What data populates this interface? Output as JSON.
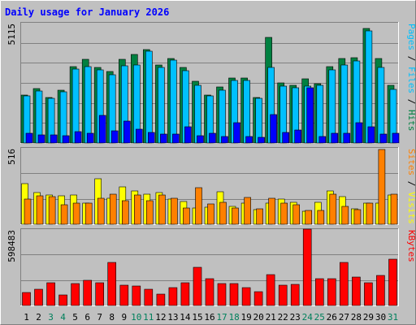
{
  "chart_data": [
    {
      "type": "bar",
      "panel": "top",
      "title": "Daily usage for January 2026",
      "categories": [
        "1",
        "2",
        "3",
        "4",
        "5",
        "6",
        "7",
        "8",
        "9",
        "10",
        "11",
        "12",
        "13",
        "14",
        "15",
        "16",
        "17",
        "18",
        "19",
        "20",
        "21",
        "22",
        "23",
        "24",
        "25",
        "26",
        "27",
        "28",
        "29",
        "30",
        "31"
      ],
      "weekend_days": [
        "3",
        "4",
        "10",
        "11",
        "17",
        "18",
        "24",
        "25",
        "31"
      ],
      "ylim": [
        0,
        5115
      ],
      "ymax_label": "5115",
      "ylabel_parts": [
        "Pages",
        "/",
        "Files",
        "/",
        "Hits"
      ],
      "series": [
        {
          "name": "Hits",
          "color": "#008040",
          "values": [
            2050,
            2300,
            1950,
            2250,
            3250,
            3560,
            3220,
            3030,
            3570,
            3770,
            3990,
            3330,
            3610,
            3200,
            2620,
            2050,
            2370,
            2760,
            2780,
            1950,
            4480,
            2560,
            2450,
            2740,
            2540,
            3240,
            3590,
            3620,
            4880,
            3600,
            2460
          ]
        },
        {
          "name": "Files",
          "color": "#00c0ff",
          "values": [
            2000,
            2200,
            1910,
            2180,
            3130,
            3240,
            3100,
            2920,
            3300,
            3320,
            3920,
            3220,
            3530,
            3080,
            2470,
            2000,
            2250,
            2670,
            2660,
            1910,
            3200,
            2430,
            2360,
            2420,
            2440,
            3110,
            3320,
            3480,
            4760,
            3230,
            2290
          ]
        },
        {
          "name": "Pages",
          "color": "#0000ff",
          "values": [
            430,
            330,
            360,
            320,
            480,
            410,
            1170,
            520,
            950,
            600,
            460,
            370,
            370,
            690,
            310,
            420,
            270,
            850,
            270,
            240,
            1210,
            460,
            560,
            2350,
            280,
            430,
            410,
            870,
            700,
            380,
            410
          ]
        }
      ]
    },
    {
      "type": "bar",
      "panel": "middle",
      "categories": [
        "1",
        "2",
        "3",
        "4",
        "5",
        "6",
        "7",
        "8",
        "9",
        "10",
        "11",
        "12",
        "13",
        "14",
        "15",
        "16",
        "17",
        "18",
        "19",
        "20",
        "21",
        "22",
        "23",
        "24",
        "25",
        "26",
        "27",
        "28",
        "29",
        "30",
        "31"
      ],
      "ylim": [
        0,
        516
      ],
      "ymax_label": "516",
      "ylabel_parts": [
        "Sites",
        "/",
        "Visits"
      ],
      "series": [
        {
          "name": "Visits",
          "color": "#ffff00",
          "values": [
            275,
            215,
            200,
            190,
            200,
            140,
            305,
            175,
            255,
            225,
            205,
            215,
            170,
            155,
            110,
            115,
            220,
            120,
            145,
            100,
            140,
            170,
            150,
            90,
            150,
            225,
            185,
            105,
            140,
            140,
            195
          ]
        },
        {
          "name": "Sites",
          "color": "#ff8000",
          "values": [
            170,
            190,
            185,
            130,
            145,
            140,
            175,
            205,
            160,
            200,
            160,
            200,
            175,
            110,
            245,
            135,
            150,
            110,
            180,
            105,
            175,
            140,
            130,
            95,
            95,
            205,
            120,
            100,
            145,
            505,
            205
          ]
        }
      ]
    },
    {
      "type": "bar",
      "panel": "bottom",
      "categories": [
        "1",
        "2",
        "3",
        "4",
        "5",
        "6",
        "7",
        "8",
        "9",
        "10",
        "11",
        "12",
        "13",
        "14",
        "15",
        "16",
        "17",
        "18",
        "19",
        "20",
        "21",
        "22",
        "23",
        "24",
        "25",
        "26",
        "27",
        "28",
        "29",
        "30",
        "31"
      ],
      "ylim": [
        0,
        598483
      ],
      "ymax_label": "598483",
      "ylabel_parts": [
        "KBytes"
      ],
      "series": [
        {
          "name": "KBytes",
          "color": "#ff0000",
          "values": [
            100000,
            130000,
            180000,
            80000,
            170000,
            200000,
            180000,
            340000,
            160000,
            150000,
            130000,
            90000,
            140000,
            180000,
            300000,
            210000,
            170000,
            175000,
            140000,
            110000,
            240000,
            160000,
            165000,
            598000,
            210000,
            210000,
            340000,
            225000,
            180000,
            235000,
            360000
          ]
        }
      ]
    }
  ]
}
